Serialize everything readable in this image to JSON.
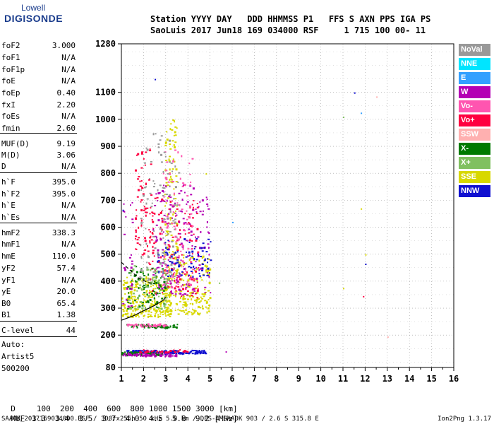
{
  "logo": {
    "line1": "Lowell",
    "line2": "DIGISONDE"
  },
  "header": {
    "line1": "Station YYYY DAY   DDD HHMMSS P1   FFS S AXN PPS IGA PS",
    "line2": "SaoLuis 2017 Jun18 169 034000 RSF     1 715 100 00- 11"
  },
  "params": [
    {
      "k": "foF2",
      "v": "3.000"
    },
    {
      "k": "foF1",
      "v": "N/A"
    },
    {
      "k": "foF1p",
      "v": "N/A"
    },
    {
      "k": "foE",
      "v": "N/A"
    },
    {
      "k": "foEp",
      "v": "0.40"
    },
    {
      "k": "fxI",
      "v": "2.20"
    },
    {
      "k": "foEs",
      "v": "N/A"
    },
    {
      "k": "fmin",
      "v": "2.60"
    },
    {
      "k": "MUF(D)",
      "v": "9.19"
    },
    {
      "k": "M(D)",
      "v": "3.06"
    },
    {
      "k": "D",
      "v": "N/A"
    },
    {
      "k": "h`F",
      "v": "395.0"
    },
    {
      "k": "h`F2",
      "v": "395.0"
    },
    {
      "k": "h`E",
      "v": "N/A"
    },
    {
      "k": "h`Es",
      "v": "N/A"
    },
    {
      "k": "hmF2",
      "v": "338.3"
    },
    {
      "k": "hmF1",
      "v": "N/A"
    },
    {
      "k": "hmE",
      "v": "110.0"
    },
    {
      "k": "yF2",
      "v": "57.4"
    },
    {
      "k": "yF1",
      "v": "N/A"
    },
    {
      "k": "yE",
      "v": "20.0"
    },
    {
      "k": "B0",
      "v": "65.4"
    },
    {
      "k": "B1",
      "v": "1.38"
    },
    {
      "k": "C-level",
      "v": "44"
    }
  ],
  "autoscale": {
    "l1": "Auto:",
    "l2": "Artist5",
    "l3": "500200"
  },
  "legend": [
    {
      "label": "NoVal",
      "color": "#999999"
    },
    {
      "label": "NNE",
      "color": "#00e5ff"
    },
    {
      "label": "E",
      "color": "#33a0ff"
    },
    {
      "label": "W",
      "color": "#b400b4"
    },
    {
      "label": "Vo-",
      "color": "#ff55b0"
    },
    {
      "label": "Vo+",
      "color": "#ff0040"
    },
    {
      "label": "SSW",
      "color": "#ffb0b0"
    },
    {
      "label": "X-",
      "color": "#007a00"
    },
    {
      "label": "X+",
      "color": "#80c060"
    },
    {
      "label": "SSE",
      "color": "#d8d800"
    },
    {
      "label": "NNW",
      "color": "#1010d0"
    }
  ],
  "muf_table": {
    "d_label": "D",
    "d_values": "100  200  400  600  800 1000 1500 3000 [km]",
    "muf_label": "MUF",
    "muf_values": "3.3  3.4  3.5  3.7  4.0  4.5  5.8  9.2 [MHz]"
  },
  "footer": {
    "left": "SAA0K_2017169034000.RSF / 300fx256h 50 kHz 5.0 km / DPS-4 SAA0K 903 / 2.6 S 315.8 E",
    "right": "Ion2Png 1.3.17"
  },
  "chart_data": {
    "type": "scatter",
    "title": "",
    "xlabel": "",
    "ylabel": "",
    "xlim": [
      1,
      16
    ],
    "ylim": [
      80,
      1280
    ],
    "x_ticks": [
      1,
      2,
      3,
      4,
      5,
      6,
      7,
      8,
      9,
      10,
      11,
      12,
      13,
      14,
      15,
      16
    ],
    "y_ticks": [
      80,
      200,
      300,
      400,
      500,
      600,
      700,
      800,
      900,
      1000,
      1100,
      1280
    ],
    "grid": true,
    "legend_position": "right",
    "traces": [
      {
        "name": "profile",
        "color": "#000000",
        "points": [
          [
            1.0,
            255
          ],
          [
            1.5,
            270
          ],
          [
            2.0,
            290
          ],
          [
            2.5,
            310
          ],
          [
            2.9,
            330
          ],
          [
            3.0,
            340
          ]
        ]
      },
      {
        "name": "o-trace",
        "color": "#000000",
        "dashed": true,
        "points": [
          [
            1.0,
            470
          ],
          [
            1.4,
            440
          ],
          [
            1.8,
            410
          ],
          [
            2.2,
            395
          ],
          [
            2.5,
            390
          ]
        ]
      }
    ],
    "clusters": [
      {
        "color": "#d8d800",
        "x": [
          1.0,
          3.2
        ],
        "y": [
          270,
          420
        ],
        "n": 260
      },
      {
        "color": "#d8d800",
        "x": [
          2.8,
          5.0
        ],
        "y": [
          280,
          500
        ],
        "n": 220
      },
      {
        "color": "#d8d800",
        "x": [
          2.9,
          3.5
        ],
        "y": [
          500,
          1000
        ],
        "n": 90
      },
      {
        "color": "#ff0040",
        "x": [
          2.2,
          4.5
        ],
        "y": [
          340,
          720
        ],
        "n": 140
      },
      {
        "color": "#b400b4",
        "x": [
          2.4,
          5.0
        ],
        "y": [
          350,
          760
        ],
        "n": 170
      },
      {
        "color": "#ff55b0",
        "x": [
          2.8,
          4.2
        ],
        "y": [
          380,
          900
        ],
        "n": 110
      },
      {
        "color": "#1010d0",
        "x": [
          2.6,
          5.0
        ],
        "y": [
          420,
          560
        ],
        "n": 90
      },
      {
        "color": "#007a00",
        "x": [
          1.2,
          3.0
        ],
        "y": [
          300,
          460
        ],
        "n": 80
      },
      {
        "color": "#80c060",
        "x": [
          1.3,
          3.2
        ],
        "y": [
          300,
          460
        ],
        "n": 70
      },
      {
        "color": "#999999",
        "x": [
          1.8,
          3.6
        ],
        "y": [
          400,
          950
        ],
        "n": 120
      },
      {
        "color": "#ff0040",
        "x": [
          1.6,
          2.4
        ],
        "y": [
          500,
          900
        ],
        "n": 70
      },
      {
        "color": "#b400b4",
        "x": [
          1.0,
          1.5
        ],
        "y": [
          300,
          700
        ],
        "n": 25
      },
      {
        "color": "#1010d0",
        "x": [
          1.2,
          4.8
        ],
        "y": [
          134,
          146
        ],
        "n": 160
      },
      {
        "color": "#007a00",
        "x": [
          1.0,
          2.8
        ],
        "y": [
          128,
          140
        ],
        "n": 80
      },
      {
        "color": "#b400b4",
        "x": [
          1.0,
          3.5
        ],
        "y": [
          125,
          138
        ],
        "n": 80
      },
      {
        "color": "#ff0040",
        "x": [
          1.8,
          4.0
        ],
        "y": [
          138,
          148
        ],
        "n": 40
      },
      {
        "color": "#007a00",
        "x": [
          1.2,
          3.5
        ],
        "y": [
          230,
          242
        ],
        "n": 60
      },
      {
        "color": "#ff55b0",
        "x": [
          1.2,
          3.0
        ],
        "y": [
          232,
          244
        ],
        "n": 40
      }
    ],
    "points": [
      {
        "x": 11.0,
        "y": 1010,
        "color": "#80c060"
      },
      {
        "x": 11.5,
        "y": 1100,
        "color": "#1010d0"
      },
      {
        "x": 11.8,
        "y": 1025,
        "color": "#33a0ff"
      },
      {
        "x": 12.5,
        "y": 1085,
        "color": "#ffb0b0"
      },
      {
        "x": 11.8,
        "y": 670,
        "color": "#d8d800"
      },
      {
        "x": 12.0,
        "y": 500,
        "color": "#d8d800"
      },
      {
        "x": 12.0,
        "y": 465,
        "color": "#1010d0"
      },
      {
        "x": 11.9,
        "y": 345,
        "color": "#ff0040"
      },
      {
        "x": 11.0,
        "y": 375,
        "color": "#d8d800"
      },
      {
        "x": 6.0,
        "y": 620,
        "color": "#33a0ff"
      },
      {
        "x": 5.4,
        "y": 395,
        "color": "#80c060"
      },
      {
        "x": 13.0,
        "y": 195,
        "color": "#ffb0b0"
      },
      {
        "x": 2.5,
        "y": 1150,
        "color": "#1010d0"
      },
      {
        "x": 4.8,
        "y": 800,
        "color": "#d8d800"
      },
      {
        "x": 5.7,
        "y": 140,
        "color": "#b400b4"
      },
      {
        "x": 1.05,
        "y": 665,
        "color": "#1010d0"
      }
    ]
  }
}
